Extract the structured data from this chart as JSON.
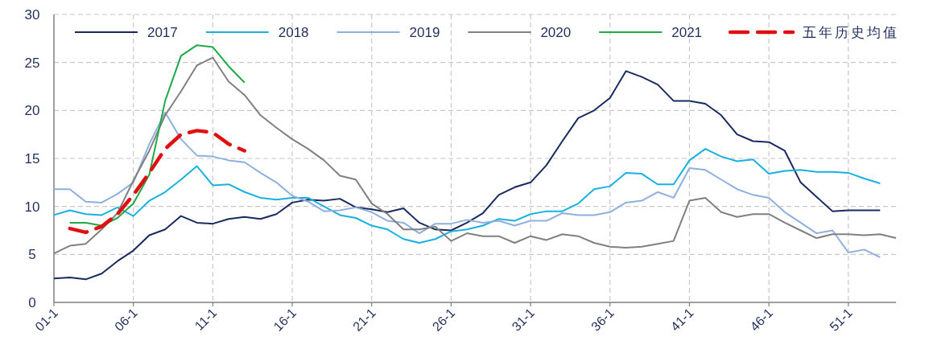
{
  "chart_data": {
    "type": "line",
    "categories": [
      "01-1",
      null,
      null,
      null,
      null,
      "06-1",
      null,
      null,
      null,
      null,
      "11-1",
      null,
      null,
      null,
      null,
      "16-1",
      null,
      null,
      null,
      null,
      "21-1",
      null,
      null,
      null,
      null,
      "26-1",
      null,
      null,
      null,
      null,
      "31-1",
      null,
      null,
      null,
      null,
      "36-1",
      null,
      null,
      null,
      null,
      "41-1",
      null,
      null,
      null,
      null,
      "46-1",
      null,
      null,
      null,
      null,
      "51-1",
      null,
      null,
      null
    ],
    "ylim": [
      0,
      30
    ],
    "yticks": [
      0,
      5,
      10,
      15,
      20,
      25,
      30
    ],
    "grid": true,
    "legend": "top",
    "line_style": "solid",
    "marker": "none",
    "series": [
      {
        "name": "2017",
        "color": "#1a2a5e",
        "values": [
          2.5,
          2.6,
          2.4,
          3.0,
          4.3,
          5.4,
          7.0,
          7.6,
          9.0,
          8.3,
          8.2,
          8.7,
          8.9,
          8.7,
          9.2,
          10.4,
          10.7,
          10.6,
          10.8,
          9.9,
          9.7,
          9.4,
          9.8,
          8.3,
          7.6,
          7.5,
          8.3,
          9.3,
          11.2,
          12.0,
          12.5,
          14.3,
          16.8,
          19.2,
          20.0,
          21.3,
          24.1,
          23.5,
          22.7,
          21.0,
          21.0,
          20.7,
          19.5,
          17.5,
          16.8,
          16.7,
          15.8,
          12.5,
          11.0,
          9.5,
          9.6,
          9.6,
          9.6,
          null
        ]
      },
      {
        "name": "2018",
        "color": "#1ab0e0",
        "values": [
          9.1,
          9.6,
          9.2,
          9.1,
          9.9,
          9.0,
          10.6,
          11.5,
          12.8,
          14.2,
          12.2,
          12.3,
          11.5,
          10.9,
          10.7,
          10.9,
          10.9,
          10.0,
          9.1,
          8.8,
          8.0,
          7.6,
          6.6,
          6.2,
          6.6,
          7.4,
          7.6,
          8.0,
          8.7,
          8.5,
          9.2,
          9.5,
          9.5,
          10.3,
          11.8,
          12.1,
          13.5,
          13.4,
          12.3,
          12.3,
          14.8,
          16.0,
          15.2,
          14.7,
          14.9,
          13.4,
          13.7,
          13.8,
          13.6,
          13.6,
          13.5,
          12.9,
          12.4,
          null
        ]
      },
      {
        "name": "2019",
        "color": "#8fb0dc",
        "values": [
          11.8,
          11.8,
          10.5,
          10.4,
          11.3,
          12.5,
          16.5,
          19.8,
          17.0,
          15.3,
          15.2,
          14.8,
          14.6,
          13.5,
          12.5,
          11.1,
          10.5,
          9.5,
          9.6,
          9.9,
          9.4,
          8.5,
          8.3,
          7.2,
          8.2,
          8.2,
          8.6,
          8.3,
          8.5,
          8.0,
          8.5,
          8.5,
          9.3,
          9.1,
          9.1,
          9.4,
          10.4,
          10.6,
          11.5,
          10.9,
          14.0,
          13.8,
          12.8,
          11.8,
          11.2,
          10.9,
          9.4,
          8.3,
          7.2,
          7.5,
          5.2,
          5.5,
          4.7,
          null
        ]
      },
      {
        "name": "2020",
        "color": "#808080",
        "values": [
          5.1,
          5.9,
          6.1,
          7.6,
          9.3,
          12.7,
          15.8,
          19.5,
          22.0,
          24.7,
          25.5,
          23.0,
          21.6,
          19.5,
          18.2,
          17.0,
          16.0,
          14.8,
          13.2,
          12.8,
          10.3,
          9.2,
          7.6,
          7.6,
          7.9,
          6.4,
          7.2,
          6.9,
          6.9,
          6.2,
          6.9,
          6.5,
          7.1,
          6.9,
          6.2,
          5.8,
          5.7,
          5.8,
          6.1,
          6.4,
          10.6,
          10.9,
          9.4,
          8.9,
          9.2,
          9.2,
          8.3,
          7.5,
          6.7,
          7.1,
          7.1,
          7.0,
          7.1,
          6.7
        ]
      },
      {
        "name": "2021",
        "color": "#20a84a",
        "values": [
          null,
          8.3,
          8.3,
          8.0,
          8.8,
          10.3,
          13.3,
          21.0,
          25.7,
          26.8,
          26.6,
          24.6,
          22.9,
          null,
          null,
          null,
          null,
          null,
          null,
          null,
          null,
          null,
          null,
          null,
          null,
          null,
          null,
          null,
          null,
          null,
          null,
          null,
          null,
          null,
          null,
          null,
          null,
          null,
          null,
          null,
          null,
          null,
          null,
          null,
          null,
          null,
          null,
          null,
          null,
          null,
          null,
          null,
          null,
          null
        ]
      },
      {
        "name": "五年历史均值",
        "color": "#e01010",
        "line_style": "dashed",
        "values": [
          null,
          7.7,
          7.3,
          7.9,
          9.2,
          11.2,
          13.5,
          16.0,
          17.5,
          17.9,
          17.7,
          16.5,
          15.8,
          null,
          null,
          null,
          null,
          null,
          null,
          null,
          null,
          null,
          null,
          null,
          null,
          null,
          null,
          null,
          null,
          null,
          null,
          null,
          null,
          null,
          null,
          null,
          null,
          null,
          null,
          null,
          null,
          null,
          null,
          null,
          null,
          null,
          null,
          null,
          null,
          null,
          null,
          null,
          null,
          null
        ]
      }
    ]
  }
}
